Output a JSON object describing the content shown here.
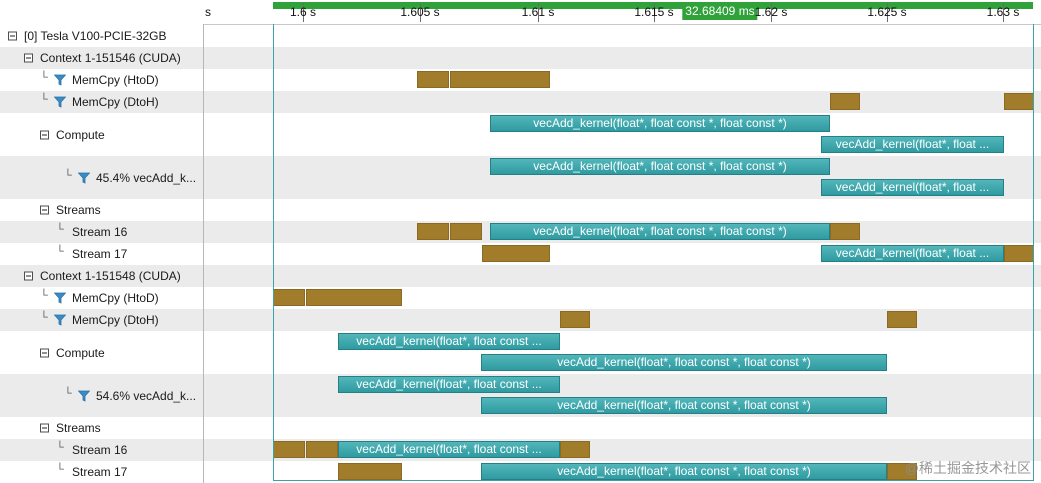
{
  "ruler": {
    "ticks": [
      "s",
      "1.6 s",
      "1.605 s",
      "1.61 s",
      "1.615 s",
      "1.62 s",
      "1.625 s",
      "1.63 s"
    ],
    "selection_label": "32.68409 ms"
  },
  "colors": {
    "memcpy": "#a07c2b",
    "kernel": "#3aa6ac",
    "selection": "#2fa23a"
  },
  "tree": [
    {
      "label": "[0] Tesla V100-PCIE-32GB",
      "kind": "toggle"
    },
    {
      "label": "Context 1-151546 (CUDA)",
      "kind": "toggle"
    },
    {
      "label": "MemCpy (HtoD)",
      "kind": "filter"
    },
    {
      "label": "MemCpy (DtoH)",
      "kind": "filter"
    },
    {
      "label": "Compute",
      "kind": "toggle"
    },
    {
      "label": "45.4% vecAdd_k...",
      "kind": "filter"
    },
    {
      "label": "Streams",
      "kind": "toggle"
    },
    {
      "label": "Stream 16",
      "kind": "leaf"
    },
    {
      "label": "Stream 17",
      "kind": "leaf"
    },
    {
      "label": "Context 1-151548 (CUDA)",
      "kind": "toggle"
    },
    {
      "label": "MemCpy (HtoD)",
      "kind": "filter"
    },
    {
      "label": "MemCpy (DtoH)",
      "kind": "filter"
    },
    {
      "label": "Compute",
      "kind": "toggle"
    },
    {
      "label": "54.6% vecAdd_k...",
      "kind": "filter"
    },
    {
      "label": "Streams",
      "kind": "toggle"
    },
    {
      "label": "Stream 16",
      "kind": "leaf"
    },
    {
      "label": "Stream 17",
      "kind": "leaf"
    }
  ],
  "kernel_labels": {
    "full": "vecAdd_kernel(float*, float const *, float const *)",
    "trunc1": "vecAdd_kernel(float*, float ...",
    "trunc2": "vecAdd_kernel(float*, float const ..."
  },
  "watermark": "@稀土掘金技术社区"
}
